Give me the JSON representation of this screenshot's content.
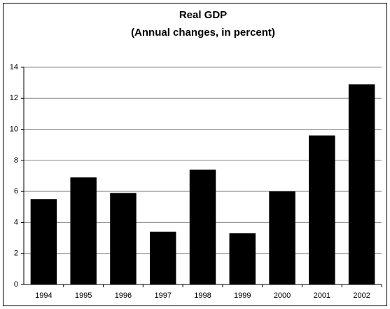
{
  "chart_data": {
    "type": "bar",
    "title": "Real GDP",
    "subtitle": "(Annual changes, in percent)",
    "categories": [
      "1994",
      "1995",
      "1996",
      "1997",
      "1998",
      "1999",
      "2000",
      "2001",
      "2002"
    ],
    "values": [
      5.5,
      6.9,
      5.9,
      3.4,
      7.4,
      3.3,
      6.0,
      9.6,
      12.9
    ],
    "color": "#000000",
    "ylim": [
      0,
      14
    ],
    "yticks": [
      0,
      2,
      4,
      6,
      8,
      10,
      12,
      14
    ],
    "grid": true
  }
}
